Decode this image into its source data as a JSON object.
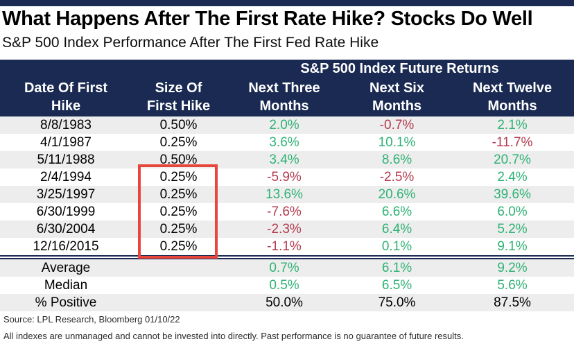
{
  "page": {
    "title": "What Happens After The First Rate Hike? Stocks Do Well",
    "subtitle": "S&P 500 Index Performance After The First Fed Rate Hike"
  },
  "table": {
    "group_header": "S&P 500 Index Future Returns",
    "columns": [
      {
        "line1": "Date Of First",
        "line2": "Hike"
      },
      {
        "line1": "Size Of",
        "line2": "First Hike"
      },
      {
        "line1": "Next Three",
        "line2": "Months"
      },
      {
        "line1": "Next Six",
        "line2": "Months"
      },
      {
        "line1": "Next Twelve",
        "line2": "Months"
      }
    ],
    "rows": [
      {
        "cells": [
          "8/8/1983",
          "0.50%",
          "2.0%",
          "-0.7%",
          "2.1%"
        ],
        "colors": [
          "",
          "",
          "pos",
          "neg",
          "pos"
        ]
      },
      {
        "cells": [
          "4/1/1987",
          "0.25%",
          "3.6%",
          "10.1%",
          "-11.7%"
        ],
        "colors": [
          "",
          "",
          "pos",
          "pos",
          "neg"
        ]
      },
      {
        "cells": [
          "5/11/1988",
          "0.50%",
          "3.4%",
          "8.6%",
          "20.7%"
        ],
        "colors": [
          "",
          "",
          "pos",
          "pos",
          "pos"
        ]
      },
      {
        "cells": [
          "2/4/1994",
          "0.25%",
          "-5.9%",
          "-2.5%",
          "2.4%"
        ],
        "colors": [
          "",
          "",
          "neg",
          "neg",
          "pos"
        ]
      },
      {
        "cells": [
          "3/25/1997",
          "0.25%",
          "13.6%",
          "20.6%",
          "39.6%"
        ],
        "colors": [
          "",
          "",
          "pos",
          "pos",
          "pos"
        ]
      },
      {
        "cells": [
          "6/30/1999",
          "0.25%",
          "-7.6%",
          "6.6%",
          "6.0%"
        ],
        "colors": [
          "",
          "",
          "neg",
          "pos",
          "pos"
        ]
      },
      {
        "cells": [
          "6/30/2004",
          "0.25%",
          "-2.3%",
          "6.4%",
          "5.2%"
        ],
        "colors": [
          "",
          "",
          "neg",
          "pos",
          "pos"
        ]
      },
      {
        "cells": [
          "12/16/2015",
          "0.25%",
          "-1.1%",
          "0.1%",
          "9.1%"
        ],
        "colors": [
          "",
          "",
          "neg",
          "pos",
          "pos"
        ]
      }
    ],
    "summary_rows": [
      {
        "cells": [
          "Average",
          "",
          "0.7%",
          "6.1%",
          "9.2%"
        ],
        "colors": [
          "",
          "",
          "pos",
          "pos",
          "pos"
        ]
      },
      {
        "cells": [
          "Median",
          "",
          "0.5%",
          "6.5%",
          "5.6%"
        ],
        "colors": [
          "",
          "",
          "pos",
          "pos",
          "pos"
        ]
      },
      {
        "cells": [
          "% Positive",
          "",
          "50.0%",
          "75.0%",
          "87.5%"
        ],
        "colors": [
          "",
          "",
          "",
          "",
          ""
        ]
      }
    ]
  },
  "annotation": {
    "highlight_color": "#e8463c",
    "highlighted_values": [
      "0.25%",
      "0.25%",
      "0.25%",
      "0.25%",
      "0.25%"
    ]
  },
  "footer": {
    "source": "Source: LPL Research, Bloomberg 01/10/22",
    "disclaimer": "All indexes are unmanaged and cannot be invested into directly. Past performance is no guarantee of future results."
  },
  "colors": {
    "navy": "#1a2a52",
    "positive_green": "#2eb274",
    "negative_red": "#b43a4e",
    "row_stripe": "#ededed",
    "highlight_red": "#e8463c"
  },
  "chart_data": {
    "type": "table",
    "title": "What Happens After The First Rate Hike? Stocks Do Well",
    "subtitle": "S&P 500 Index Performance After The First Fed Rate Hike",
    "group_header": "S&P 500 Index Future Returns",
    "columns": [
      "Date Of First Hike",
      "Size Of First Hike",
      "Next Three Months",
      "Next Six Months",
      "Next Twelve Months"
    ],
    "rows": [
      [
        "8/8/1983",
        "0.50%",
        2.0,
        -0.7,
        2.1
      ],
      [
        "4/1/1987",
        "0.25%",
        3.6,
        10.1,
        -11.7
      ],
      [
        "5/11/1988",
        "0.50%",
        3.4,
        8.6,
        20.7
      ],
      [
        "2/4/1994",
        "0.25%",
        -5.9,
        -2.5,
        2.4
      ],
      [
        "3/25/1997",
        "0.25%",
        13.6,
        20.6,
        39.6
      ],
      [
        "6/30/1999",
        "0.25%",
        -7.6,
        6.6,
        6.0
      ],
      [
        "6/30/2004",
        "0.25%",
        -2.3,
        6.4,
        5.2
      ],
      [
        "12/16/2015",
        "0.25%",
        -1.1,
        0.1,
        9.1
      ]
    ],
    "summary_rows": [
      [
        "Average",
        null,
        0.7,
        6.1,
        9.2
      ],
      [
        "Median",
        null,
        0.5,
        6.5,
        5.6
      ],
      [
        "% Positive",
        null,
        50.0,
        75.0,
        87.5
      ]
    ],
    "value_unit": "%",
    "notes": "Returns colored green when positive, red when negative; red box annotation highlights the five 0.25% first hikes (1994-2015)."
  }
}
